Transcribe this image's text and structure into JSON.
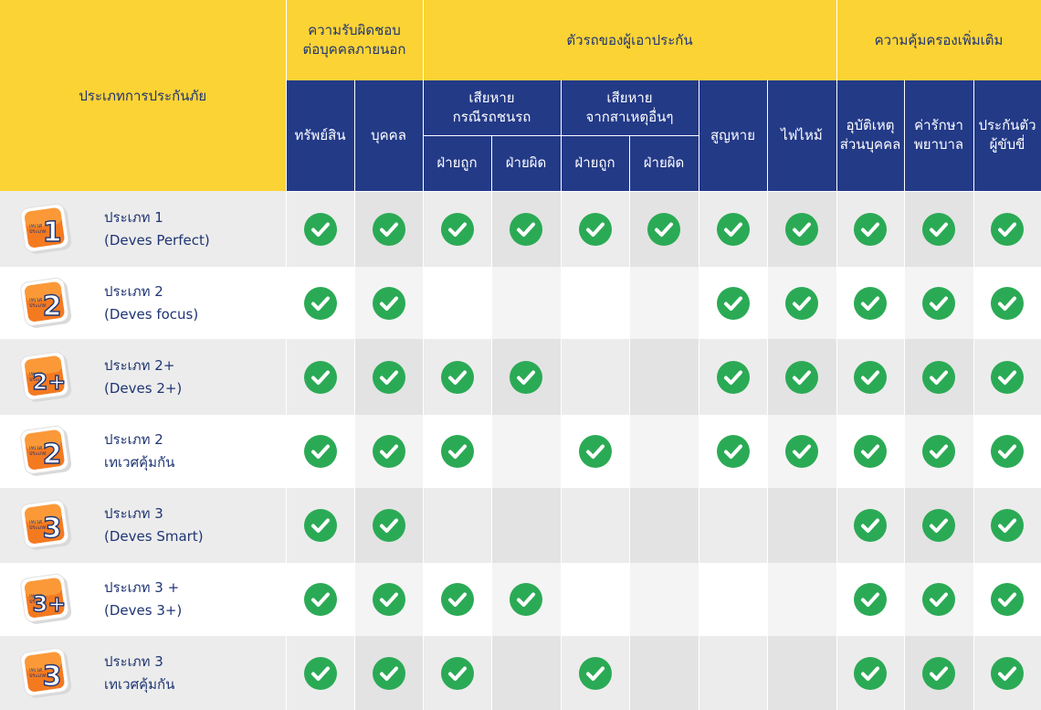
{
  "header": {
    "type_label": "ประเภทการประกันภัย",
    "group_third_party": "ความรับผิดชอบ\nต่อบุคคลภายนอก",
    "group_own_vehicle": "ตัวรถของผู้เอาประกัน",
    "group_extra": "ความคุ้มครองเพิ่มเติม",
    "col_property": "ทรัพย์สิน",
    "col_person": "บุคคล",
    "sub_collision": "เสียหาย\nกรณีรถชนรถ",
    "sub_other": "เสียหาย\nจากสาเหตุอื่นๆ",
    "col_lost": "สูญหาย",
    "col_fire": "ไฟไหม้",
    "col_accident": "อุบัติเหตุ\nส่วนบุคคล",
    "col_medical": "ค่ารักษา\nพยาบาล",
    "col_bail": "ประกันตัว\nผู้ขับขี่",
    "right_side": "ฝ่ายถูก",
    "wrong_side": "ฝ่ายผิด"
  },
  "rows": [
    {
      "badge_small": "เทเวศ\nประเภท",
      "badge_num": "1",
      "line1": "ประเภท 1",
      "line2": "(Deves Perfect)",
      "checks": [
        1,
        1,
        1,
        1,
        1,
        1,
        1,
        1,
        1,
        1,
        1
      ]
    },
    {
      "badge_small": "เทเวศ\nประเภท",
      "badge_num": "2",
      "line1": "ประเภท 2",
      "line2": "(Deves focus)",
      "checks": [
        1,
        1,
        0,
        0,
        0,
        0,
        1,
        1,
        1,
        1,
        1
      ]
    },
    {
      "badge_small": "เทเวศ\nประเภท",
      "badge_num": "2+",
      "line1": "ประเภท 2+",
      "line2": "(Deves 2+)",
      "checks": [
        1,
        1,
        1,
        1,
        0,
        0,
        1,
        1,
        1,
        1,
        1
      ]
    },
    {
      "badge_small": "เทเวศ\nประเภท",
      "badge_num": "2",
      "line1": "ประเภท 2",
      "line2": "เทเวศคุ้มกัน",
      "checks": [
        1,
        1,
        1,
        0,
        1,
        0,
        1,
        1,
        1,
        1,
        1
      ]
    },
    {
      "badge_small": "เทเวศ\nประเภท",
      "badge_num": "3",
      "line1": "ประเภท 3",
      "line2": "(Deves Smart)",
      "checks": [
        1,
        1,
        0,
        0,
        0,
        0,
        0,
        0,
        1,
        1,
        1
      ]
    },
    {
      "badge_small": "เทเวศ\nประเภท",
      "badge_num": "3+",
      "line1": "ประเภท 3 +",
      "line2": "(Deves 3+)",
      "checks": [
        1,
        1,
        1,
        1,
        0,
        0,
        0,
        0,
        1,
        1,
        1
      ]
    },
    {
      "badge_small": "เทเวศ\nประเภท",
      "badge_num": "3",
      "line1": "ประเภท 3",
      "line2": "เทเวศคุ้มกัน",
      "checks": [
        1,
        1,
        1,
        0,
        1,
        0,
        0,
        0,
        1,
        1,
        1
      ]
    }
  ],
  "colors": {
    "yellow": "#fcd335",
    "navy": "#233a87",
    "text_navy": "#1f3573",
    "check_green": "#2baa55",
    "badge_orange": "#f47a20"
  },
  "icons": {
    "check": "check-circle-icon",
    "badge": "plan-badge-icon"
  }
}
